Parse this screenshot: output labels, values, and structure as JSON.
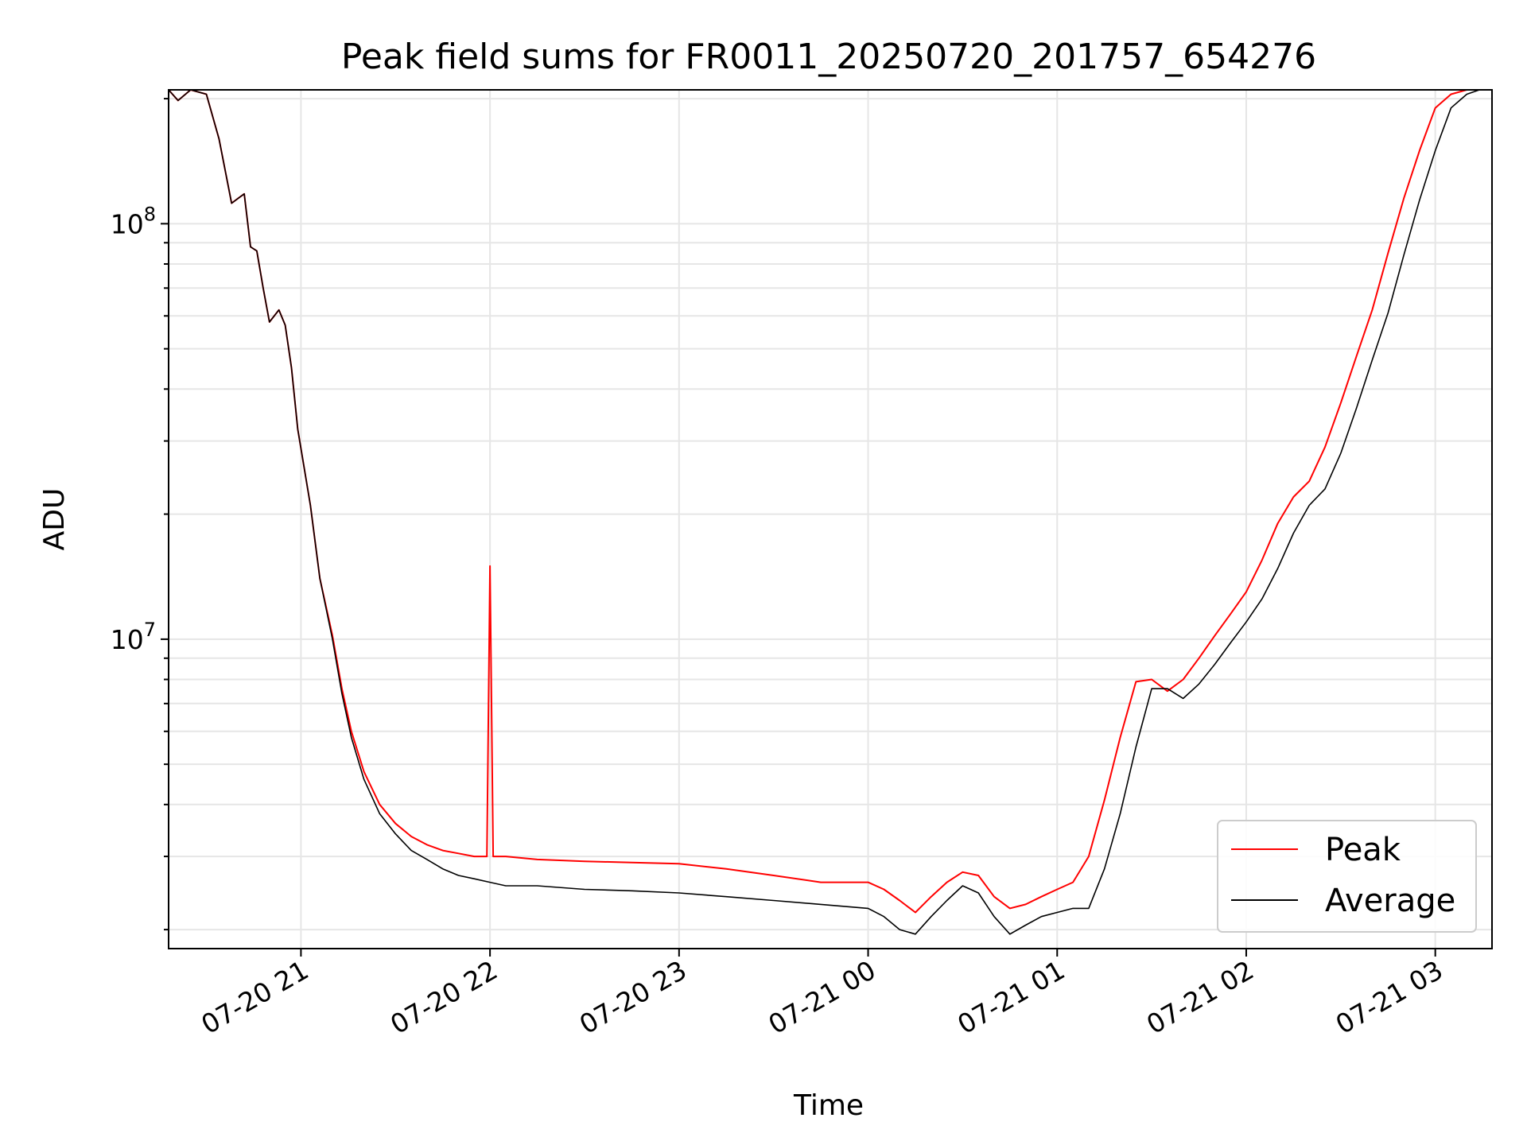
{
  "chart_data": {
    "type": "line",
    "title": "Peak field sums for FR0011_20250720_201757_654276",
    "xlabel": "Time",
    "ylabel": "ADU",
    "x_axis_type": "time",
    "y_scale": "log",
    "xlim": [
      "2025-07-20 20:18",
      "2025-07-21 03:18"
    ],
    "ylim": [
      1800000,
      210000000
    ],
    "x_ticks": [
      {
        "value": "2025-07-20 21:00",
        "label": "07-20 21"
      },
      {
        "value": "2025-07-20 22:00",
        "label": "07-20 22"
      },
      {
        "value": "2025-07-20 23:00",
        "label": "07-20 23"
      },
      {
        "value": "2025-07-21 00:00",
        "label": "07-21 00"
      },
      {
        "value": "2025-07-21 01:00",
        "label": "07-21 01"
      },
      {
        "value": "2025-07-21 02:00",
        "label": "07-21 02"
      },
      {
        "value": "2025-07-21 03:00",
        "label": "07-21 03"
      }
    ],
    "y_ticks": [
      {
        "value": 10000000,
        "base": "10",
        "exponent": "7"
      },
      {
        "value": 100000000,
        "base": "10",
        "exponent": "8"
      }
    ],
    "grid": true,
    "legend_position": "lower right",
    "series": [
      {
        "name": "Peak",
        "color": "#ff0000",
        "x": [
          "2025-07-20 20:18",
          "2025-07-20 20:21",
          "2025-07-20 20:25",
          "2025-07-20 20:30",
          "2025-07-20 20:34",
          "2025-07-20 20:38",
          "2025-07-20 20:40",
          "2025-07-20 20:42",
          "2025-07-20 20:44",
          "2025-07-20 20:46",
          "2025-07-20 20:48",
          "2025-07-20 20:50",
          "2025-07-20 20:53",
          "2025-07-20 20:55",
          "2025-07-20 20:57",
          "2025-07-20 20:59",
          "2025-07-20 21:03",
          "2025-07-20 21:06",
          "2025-07-20 21:10",
          "2025-07-20 21:13",
          "2025-07-20 21:16",
          "2025-07-20 21:20",
          "2025-07-20 21:25",
          "2025-07-20 21:30",
          "2025-07-20 21:35",
          "2025-07-20 21:40",
          "2025-07-20 21:45",
          "2025-07-20 21:50",
          "2025-07-20 21:55",
          "2025-07-20 21:59",
          "2025-07-20 22:00",
          "2025-07-20 22:01",
          "2025-07-20 22:05",
          "2025-07-20 22:15",
          "2025-07-20 22:30",
          "2025-07-20 22:45",
          "2025-07-20 23:00",
          "2025-07-20 23:15",
          "2025-07-20 23:30",
          "2025-07-20 23:45",
          "2025-07-21 00:00",
          "2025-07-21 00:05",
          "2025-07-21 00:10",
          "2025-07-21 00:15",
          "2025-07-21 00:20",
          "2025-07-21 00:25",
          "2025-07-21 00:30",
          "2025-07-21 00:35",
          "2025-07-21 00:40",
          "2025-07-21 00:45",
          "2025-07-21 00:50",
          "2025-07-21 00:55",
          "2025-07-21 01:00",
          "2025-07-21 01:05",
          "2025-07-21 01:10",
          "2025-07-21 01:15",
          "2025-07-21 01:20",
          "2025-07-21 01:25",
          "2025-07-21 01:30",
          "2025-07-21 01:35",
          "2025-07-21 01:40",
          "2025-07-21 01:45",
          "2025-07-21 01:50",
          "2025-07-21 01:55",
          "2025-07-21 02:00",
          "2025-07-21 02:05",
          "2025-07-21 02:10",
          "2025-07-21 02:15",
          "2025-07-21 02:20",
          "2025-07-21 02:25",
          "2025-07-21 02:30",
          "2025-07-21 02:35",
          "2025-07-21 02:40",
          "2025-07-21 02:45",
          "2025-07-21 02:50",
          "2025-07-21 02:55",
          "2025-07-21 03:00",
          "2025-07-21 03:05",
          "2025-07-21 03:10",
          "2025-07-21 03:14"
        ],
        "values": [
          210000000,
          198000000,
          210000000,
          205000000,
          160000000,
          112000000,
          115000000,
          118000000,
          88000000,
          86000000,
          70000000,
          58000000,
          62000000,
          57000000,
          45000000,
          32000000,
          21000000,
          14000000,
          10200000,
          7600000,
          6000000,
          4800000,
          4000000,
          3600000,
          3350000,
          3200000,
          3100000,
          3050000,
          3000000,
          3000000,
          15000000,
          3000000,
          3000000,
          2950000,
          2920000,
          2900000,
          2880000,
          2800000,
          2700000,
          2600000,
          2600000,
          2500000,
          2350000,
          2200000,
          2400000,
          2600000,
          2750000,
          2700000,
          2400000,
          2250000,
          2300000,
          2400000,
          2500000,
          2600000,
          3000000,
          4100000,
          5800000,
          7900000,
          8000000,
          7500000,
          8000000,
          9000000,
          10200000,
          11500000,
          13000000,
          15500000,
          19000000,
          22000000,
          24000000,
          29000000,
          37000000,
          48000000,
          62000000,
          85000000,
          115000000,
          150000000,
          190000000,
          205000000,
          210000000,
          210000000
        ]
      },
      {
        "name": "Average",
        "color": "#000000",
        "x": [
          "2025-07-20 20:18",
          "2025-07-20 20:21",
          "2025-07-20 20:25",
          "2025-07-20 20:30",
          "2025-07-20 20:34",
          "2025-07-20 20:38",
          "2025-07-20 20:40",
          "2025-07-20 20:42",
          "2025-07-20 20:44",
          "2025-07-20 20:46",
          "2025-07-20 20:48",
          "2025-07-20 20:50",
          "2025-07-20 20:53",
          "2025-07-20 20:55",
          "2025-07-20 20:57",
          "2025-07-20 20:59",
          "2025-07-20 21:03",
          "2025-07-20 21:06",
          "2025-07-20 21:10",
          "2025-07-20 21:13",
          "2025-07-20 21:16",
          "2025-07-20 21:20",
          "2025-07-20 21:25",
          "2025-07-20 21:30",
          "2025-07-20 21:35",
          "2025-07-20 21:40",
          "2025-07-20 21:45",
          "2025-07-20 21:50",
          "2025-07-20 21:55",
          "2025-07-20 22:00",
          "2025-07-20 22:05",
          "2025-07-20 22:15",
          "2025-07-20 22:30",
          "2025-07-20 22:45",
          "2025-07-20 23:00",
          "2025-07-20 23:15",
          "2025-07-20 23:30",
          "2025-07-20 23:45",
          "2025-07-21 00:00",
          "2025-07-21 00:05",
          "2025-07-21 00:10",
          "2025-07-21 00:15",
          "2025-07-21 00:20",
          "2025-07-21 00:25",
          "2025-07-21 00:30",
          "2025-07-21 00:35",
          "2025-07-21 00:40",
          "2025-07-21 00:45",
          "2025-07-21 00:50",
          "2025-07-21 00:55",
          "2025-07-21 01:00",
          "2025-07-21 01:05",
          "2025-07-21 01:10",
          "2025-07-21 01:15",
          "2025-07-21 01:20",
          "2025-07-21 01:25",
          "2025-07-21 01:30",
          "2025-07-21 01:35",
          "2025-07-21 01:40",
          "2025-07-21 01:45",
          "2025-07-21 01:50",
          "2025-07-21 01:55",
          "2025-07-21 02:00",
          "2025-07-21 02:05",
          "2025-07-21 02:10",
          "2025-07-21 02:15",
          "2025-07-21 02:20",
          "2025-07-21 02:25",
          "2025-07-21 02:30",
          "2025-07-21 02:35",
          "2025-07-21 02:40",
          "2025-07-21 02:45",
          "2025-07-21 02:50",
          "2025-07-21 02:55",
          "2025-07-21 03:00",
          "2025-07-21 03:05",
          "2025-07-21 03:10",
          "2025-07-21 03:14"
        ],
        "values": [
          210000000,
          198000000,
          210000000,
          205000000,
          160000000,
          112000000,
          115000000,
          118000000,
          88000000,
          86000000,
          70000000,
          58000000,
          62000000,
          57000000,
          45000000,
          32000000,
          21000000,
          14000000,
          10000000,
          7400000,
          5800000,
          4600000,
          3800000,
          3400000,
          3100000,
          2950000,
          2800000,
          2700000,
          2650000,
          2600000,
          2550000,
          2550000,
          2500000,
          2480000,
          2450000,
          2400000,
          2350000,
          2300000,
          2250000,
          2150000,
          2000000,
          1950000,
          2150000,
          2350000,
          2550000,
          2450000,
          2150000,
          1950000,
          2050000,
          2150000,
          2200000,
          2250000,
          2250000,
          2800000,
          3800000,
          5500000,
          7600000,
          7600000,
          7200000,
          7800000,
          8700000,
          9800000,
          11000000,
          12500000,
          14800000,
          18000000,
          21000000,
          23000000,
          28000000,
          36000000,
          47000000,
          61000000,
          84000000,
          114000000,
          150000000,
          190000000,
          205000000,
          210000000
        ]
      }
    ]
  }
}
